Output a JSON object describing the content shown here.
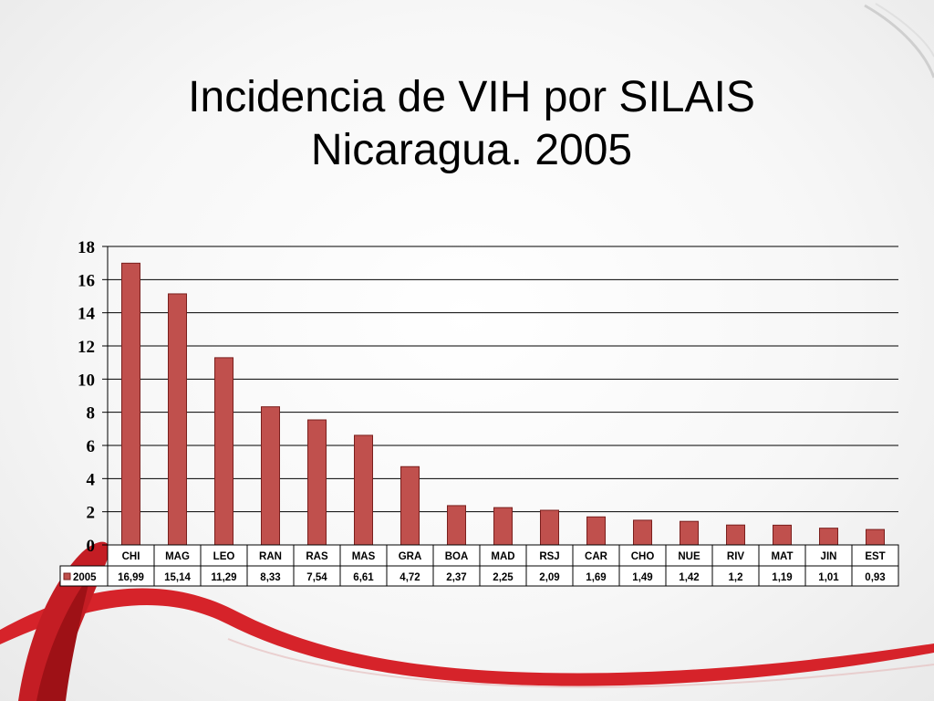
{
  "slide": {
    "title_line1": "Incidencia de VIH por SILAIS",
    "title_line2": "Nicaragua. 2005"
  },
  "colors": {
    "bar": "#c0504d",
    "bar_stroke": "#7a1f1d",
    "ribbon": "#d6232a",
    "ribbon_dark": "#9e1116"
  },
  "chart_data": {
    "type": "bar",
    "categories": [
      "CHI",
      "MAG",
      "LEO",
      "RAN",
      "RAS",
      "MAS",
      "GRA",
      "BOA",
      "MAD",
      "RSJ",
      "CAR",
      "CHO",
      "NUE",
      "RIV",
      "MAT",
      "JIN",
      "EST"
    ],
    "series": [
      {
        "name": "2005",
        "values": [
          16.99,
          15.14,
          11.29,
          8.33,
          7.54,
          6.61,
          4.72,
          2.37,
          2.25,
          2.09,
          1.69,
          1.49,
          1.42,
          1.2,
          1.19,
          1.01,
          0.93
        ],
        "value_labels": [
          "16,99",
          "15,14",
          "11,29",
          "8,33",
          "7,54",
          "6,61",
          "4,72",
          "2,37",
          "2,25",
          "2,09",
          "1,69",
          "1,49",
          "1,42",
          "1,2",
          "1,19",
          "1,01",
          "0,93"
        ]
      }
    ],
    "ylim": [
      0,
      18
    ],
    "yticks": [
      0,
      2,
      4,
      6,
      8,
      10,
      12,
      14,
      16,
      18
    ],
    "grid": true,
    "legend": "data-table"
  }
}
